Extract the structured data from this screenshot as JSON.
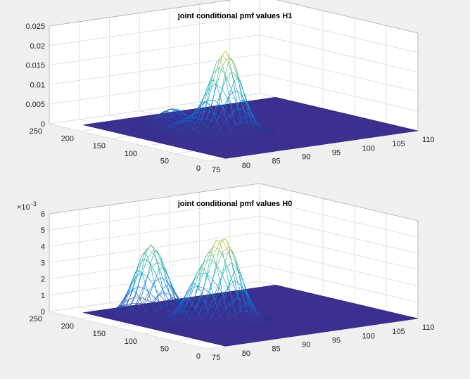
{
  "chart_data": [
    {
      "type": "surface",
      "title": "joint conditional pmf values H1",
      "x_ticks": [
        75,
        80,
        85,
        90,
        95,
        100,
        105,
        110
      ],
      "y_ticks": [
        0,
        50,
        100,
        150,
        200,
        250
      ],
      "z_ticks": [
        "0",
        "0.005",
        "0.01",
        "0.015",
        "0.02",
        "0.025"
      ],
      "z_multiplier": "",
      "xlim": [
        75,
        110
      ],
      "ylim": [
        0,
        250
      ],
      "zlim": [
        0,
        0.025
      ],
      "grid": true,
      "colormap": "parula",
      "peaks": [
        {
          "x": 88,
          "y": 95,
          "z": 0.0215
        },
        {
          "x": 86,
          "y": 160,
          "z": 0.0048
        },
        {
          "x": 84,
          "y": 120,
          "z": 0.0035
        }
      ]
    },
    {
      "type": "surface",
      "title": "joint conditional pmf values H0",
      "x_ticks": [
        75,
        80,
        85,
        90,
        95,
        100,
        105,
        110
      ],
      "y_ticks": [
        0,
        50,
        100,
        150,
        200,
        250
      ],
      "z_ticks": [
        "0",
        "1",
        "2",
        "3",
        "4",
        "5",
        "6"
      ],
      "z_multiplier": "×10",
      "z_multiplier_exp": "-3",
      "xlim": [
        75,
        110
      ],
      "ylim": [
        0,
        250
      ],
      "zlim": [
        0,
        0.006
      ],
      "grid": true,
      "colormap": "parula",
      "peaks": [
        {
          "x": 88,
          "y": 95,
          "z": 0.0047
        },
        {
          "x": 84,
          "y": 175,
          "z": 0.0043
        },
        {
          "x": 85,
          "y": 110,
          "z": 0.0022
        }
      ]
    }
  ],
  "colors": {
    "background": "#f0f0f0",
    "axes_face": "#ffffff",
    "grid": "#dcdcdc",
    "floor": "#3b2f8f"
  }
}
